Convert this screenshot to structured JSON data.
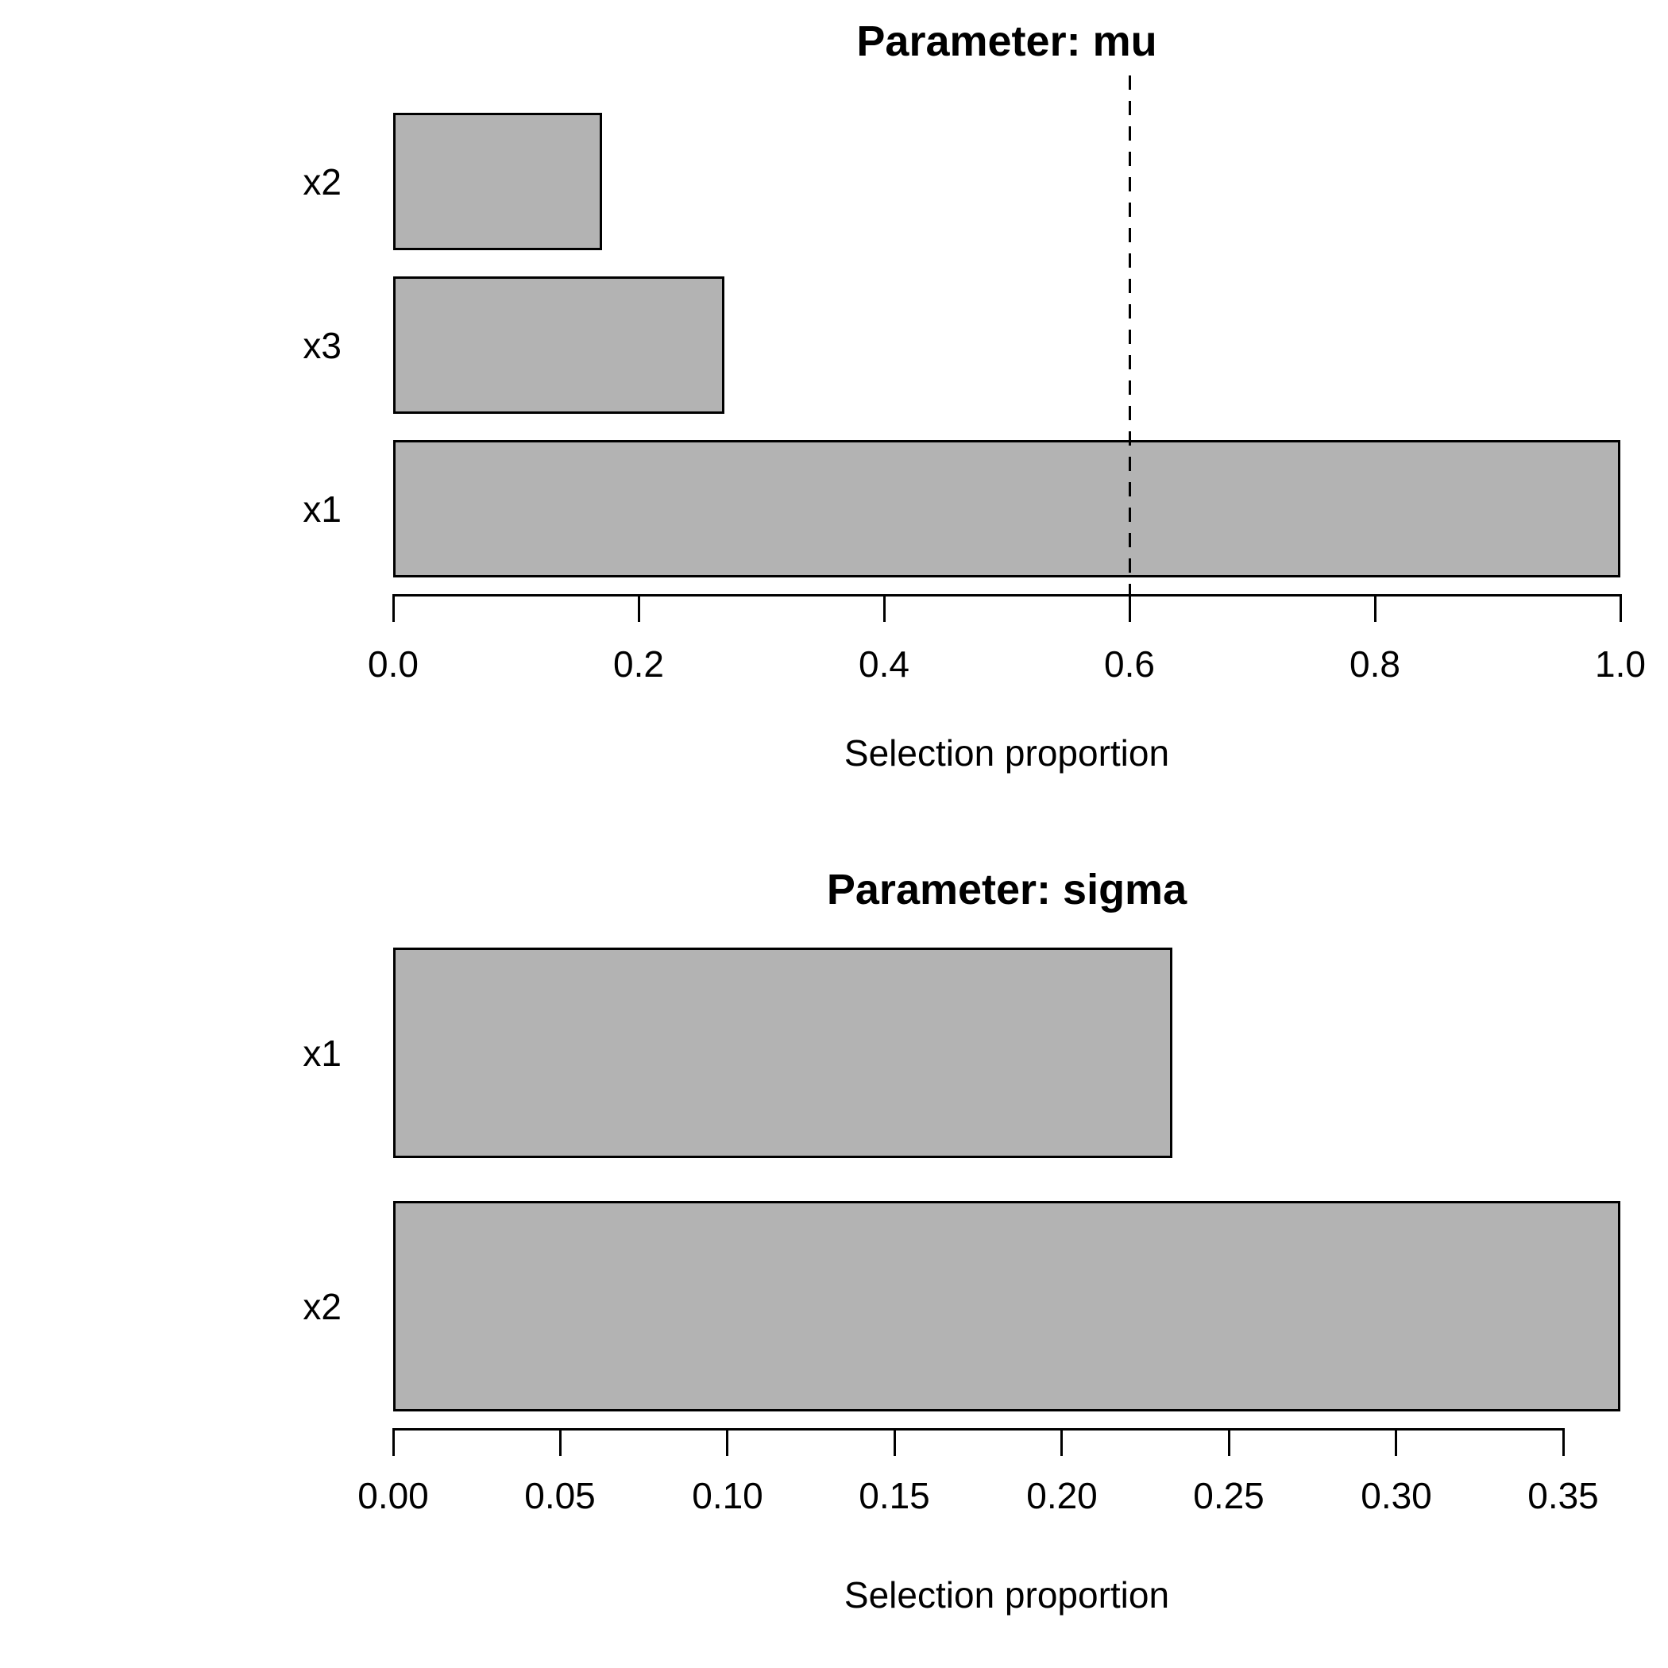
{
  "figure": {
    "background": "#ffffff",
    "text_color": "#000000"
  },
  "chart_data": [
    {
      "type": "bar",
      "orientation": "horizontal",
      "title": "Parameter: mu",
      "xlabel": "Selection proportion",
      "ylabel": "",
      "categories": [
        "x2",
        "x3",
        "x1"
      ],
      "values": [
        0.17,
        0.27,
        1.0
      ],
      "xlim": [
        0,
        1.0
      ],
      "xticks": [
        0.0,
        0.2,
        0.4,
        0.6,
        0.8,
        1.0
      ],
      "xtick_labels": [
        "0.0",
        "0.2",
        "0.4",
        "0.6",
        "0.8",
        "1.0"
      ],
      "threshold_line": {
        "x": 0.6,
        "style": "dashed",
        "color": "#000000"
      },
      "bar_color": "#b3b3b3",
      "bar_border_color": "#000000",
      "grid": false,
      "legend": false
    },
    {
      "type": "bar",
      "orientation": "horizontal",
      "title": "Parameter: sigma",
      "xlabel": "Selection proportion",
      "ylabel": "",
      "categories": [
        "x1",
        "x2"
      ],
      "values": [
        0.233,
        0.367
      ],
      "xlim": [
        0,
        0.367
      ],
      "xticks": [
        0.0,
        0.05,
        0.1,
        0.15,
        0.2,
        0.25,
        0.3,
        0.35
      ],
      "xtick_labels": [
        "0.00",
        "0.05",
        "0.10",
        "0.15",
        "0.20",
        "0.25",
        "0.30",
        "0.35"
      ],
      "threshold_line": null,
      "bar_color": "#b3b3b3",
      "bar_border_color": "#000000",
      "grid": false,
      "legend": false
    }
  ]
}
